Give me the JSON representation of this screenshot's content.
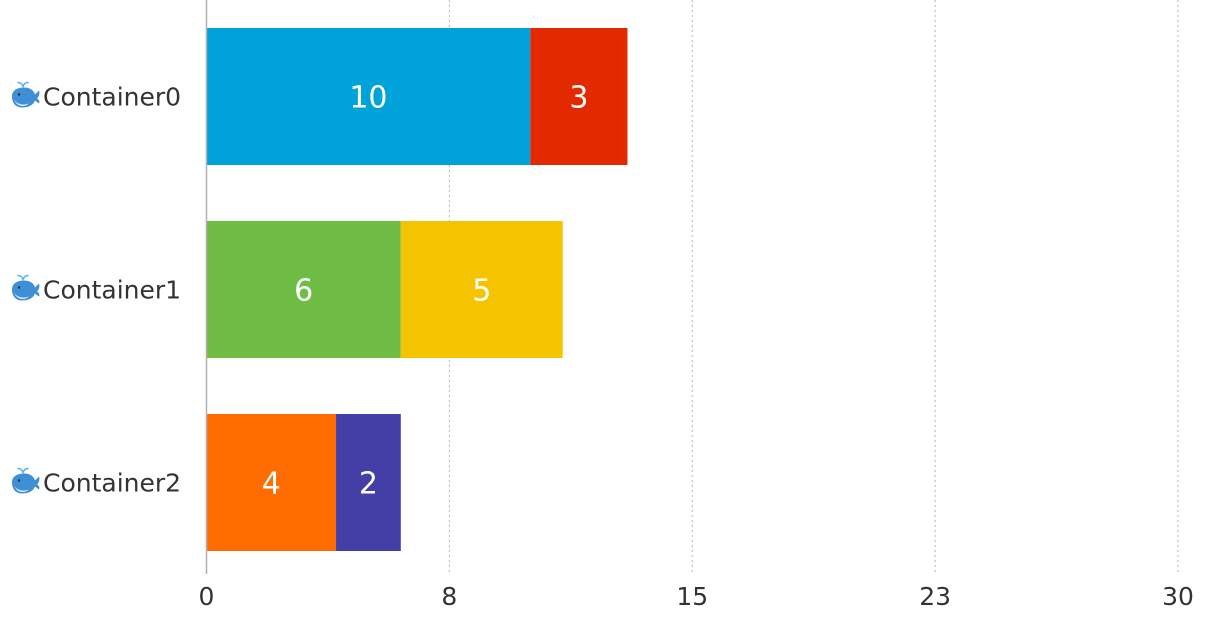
{
  "chart_data": {
    "type": "bar",
    "orientation": "horizontal",
    "stacked": true,
    "categories": [
      "Container0",
      "Container1",
      "Container2"
    ],
    "category_icon": "whale-icon",
    "segments": [
      [
        {
          "value": 10,
          "color": "#00a3d9"
        },
        {
          "value": 3,
          "color": "#e22900"
        }
      ],
      [
        {
          "value": 6,
          "color": "#70bd46"
        },
        {
          "value": 5,
          "color": "#f5c400"
        }
      ],
      [
        {
          "value": 4,
          "color": "#ff6c00"
        },
        {
          "value": 2,
          "color": "#433fa7"
        }
      ]
    ],
    "xlim": [
      0,
      30
    ],
    "xticks": [
      0,
      7.5,
      15,
      22.5,
      30
    ],
    "xtick_labels": [
      "0",
      "8",
      "15",
      "23",
      "30"
    ],
    "grid": "vertical-dotted",
    "legend": "none"
  }
}
